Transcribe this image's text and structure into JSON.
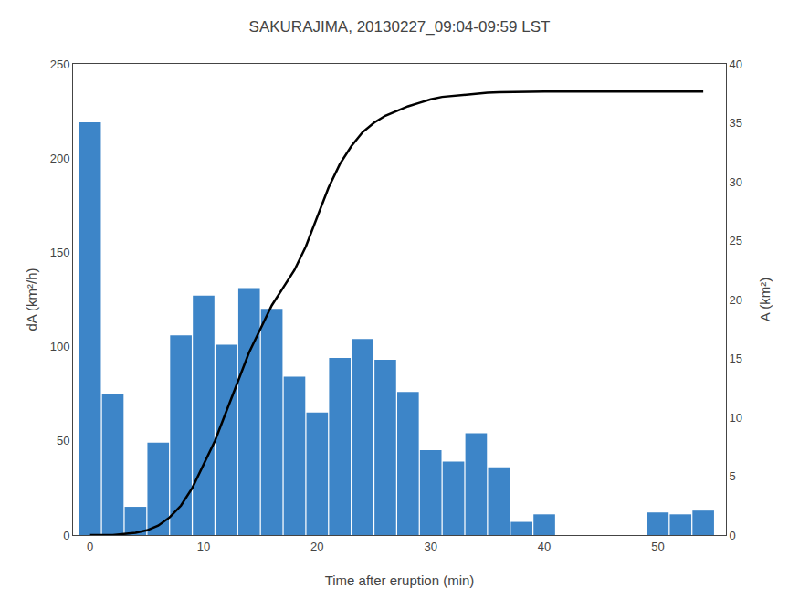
{
  "chart_data": {
    "type": "bar",
    "title": "SAKURAJIMA, 20130227_09:04-09:59 LST",
    "xlabel": "Time after eruption (min)",
    "ylabel": "dA (km²/h)",
    "y2label": "A (km²)",
    "series": [
      {
        "type": "bar",
        "color": "#3d85c8",
        "x": [
          0,
          2,
          4,
          6,
          8,
          10,
          12,
          14,
          16,
          18,
          20,
          22,
          24,
          26,
          28,
          30,
          32,
          34,
          36,
          38,
          40,
          50,
          52,
          54
        ],
        "values": [
          219,
          75,
          15,
          49,
          106,
          127,
          101,
          131,
          120,
          84,
          65,
          94,
          104,
          93,
          76,
          45,
          39,
          54,
          36,
          7,
          11,
          12,
          11,
          13
        ]
      },
      {
        "type": "line",
        "axis": "y2",
        "color": "#000000",
        "x": [
          0,
          1,
          2,
          3,
          4,
          5,
          6,
          7,
          8,
          9,
          10,
          11,
          12,
          13,
          14,
          15,
          16,
          17,
          18,
          19,
          20,
          21,
          22,
          23,
          24,
          25,
          26,
          27,
          28,
          29,
          30,
          31,
          32,
          33,
          34,
          35,
          36,
          37,
          38,
          39,
          40,
          50,
          52,
          54
        ],
        "values": [
          0.0,
          0.0,
          0.0,
          0.1,
          0.2,
          0.4,
          0.8,
          1.5,
          2.5,
          4.0,
          6.0,
          8.0,
          10.5,
          13.0,
          15.5,
          17.5,
          19.5,
          21.0,
          22.5,
          24.5,
          27.0,
          29.5,
          31.5,
          33.0,
          34.2,
          35.0,
          35.6,
          36.0,
          36.4,
          36.7,
          37.0,
          37.2,
          37.3,
          37.4,
          37.5,
          37.55,
          37.6,
          37.62,
          37.64,
          37.65,
          37.65,
          37.65,
          37.65,
          37.65
        ]
      }
    ],
    "xlim": [
      -1.5,
      56
    ],
    "xticks": [
      0,
      10,
      20,
      30,
      40,
      50
    ],
    "ylim": [
      0,
      250
    ],
    "yticks": [
      0,
      50,
      100,
      150,
      200,
      250
    ],
    "y2lim": [
      0,
      40
    ],
    "y2ticks": [
      0,
      5,
      10,
      15,
      20,
      25,
      30,
      35,
      40
    ],
    "grid": false
  }
}
